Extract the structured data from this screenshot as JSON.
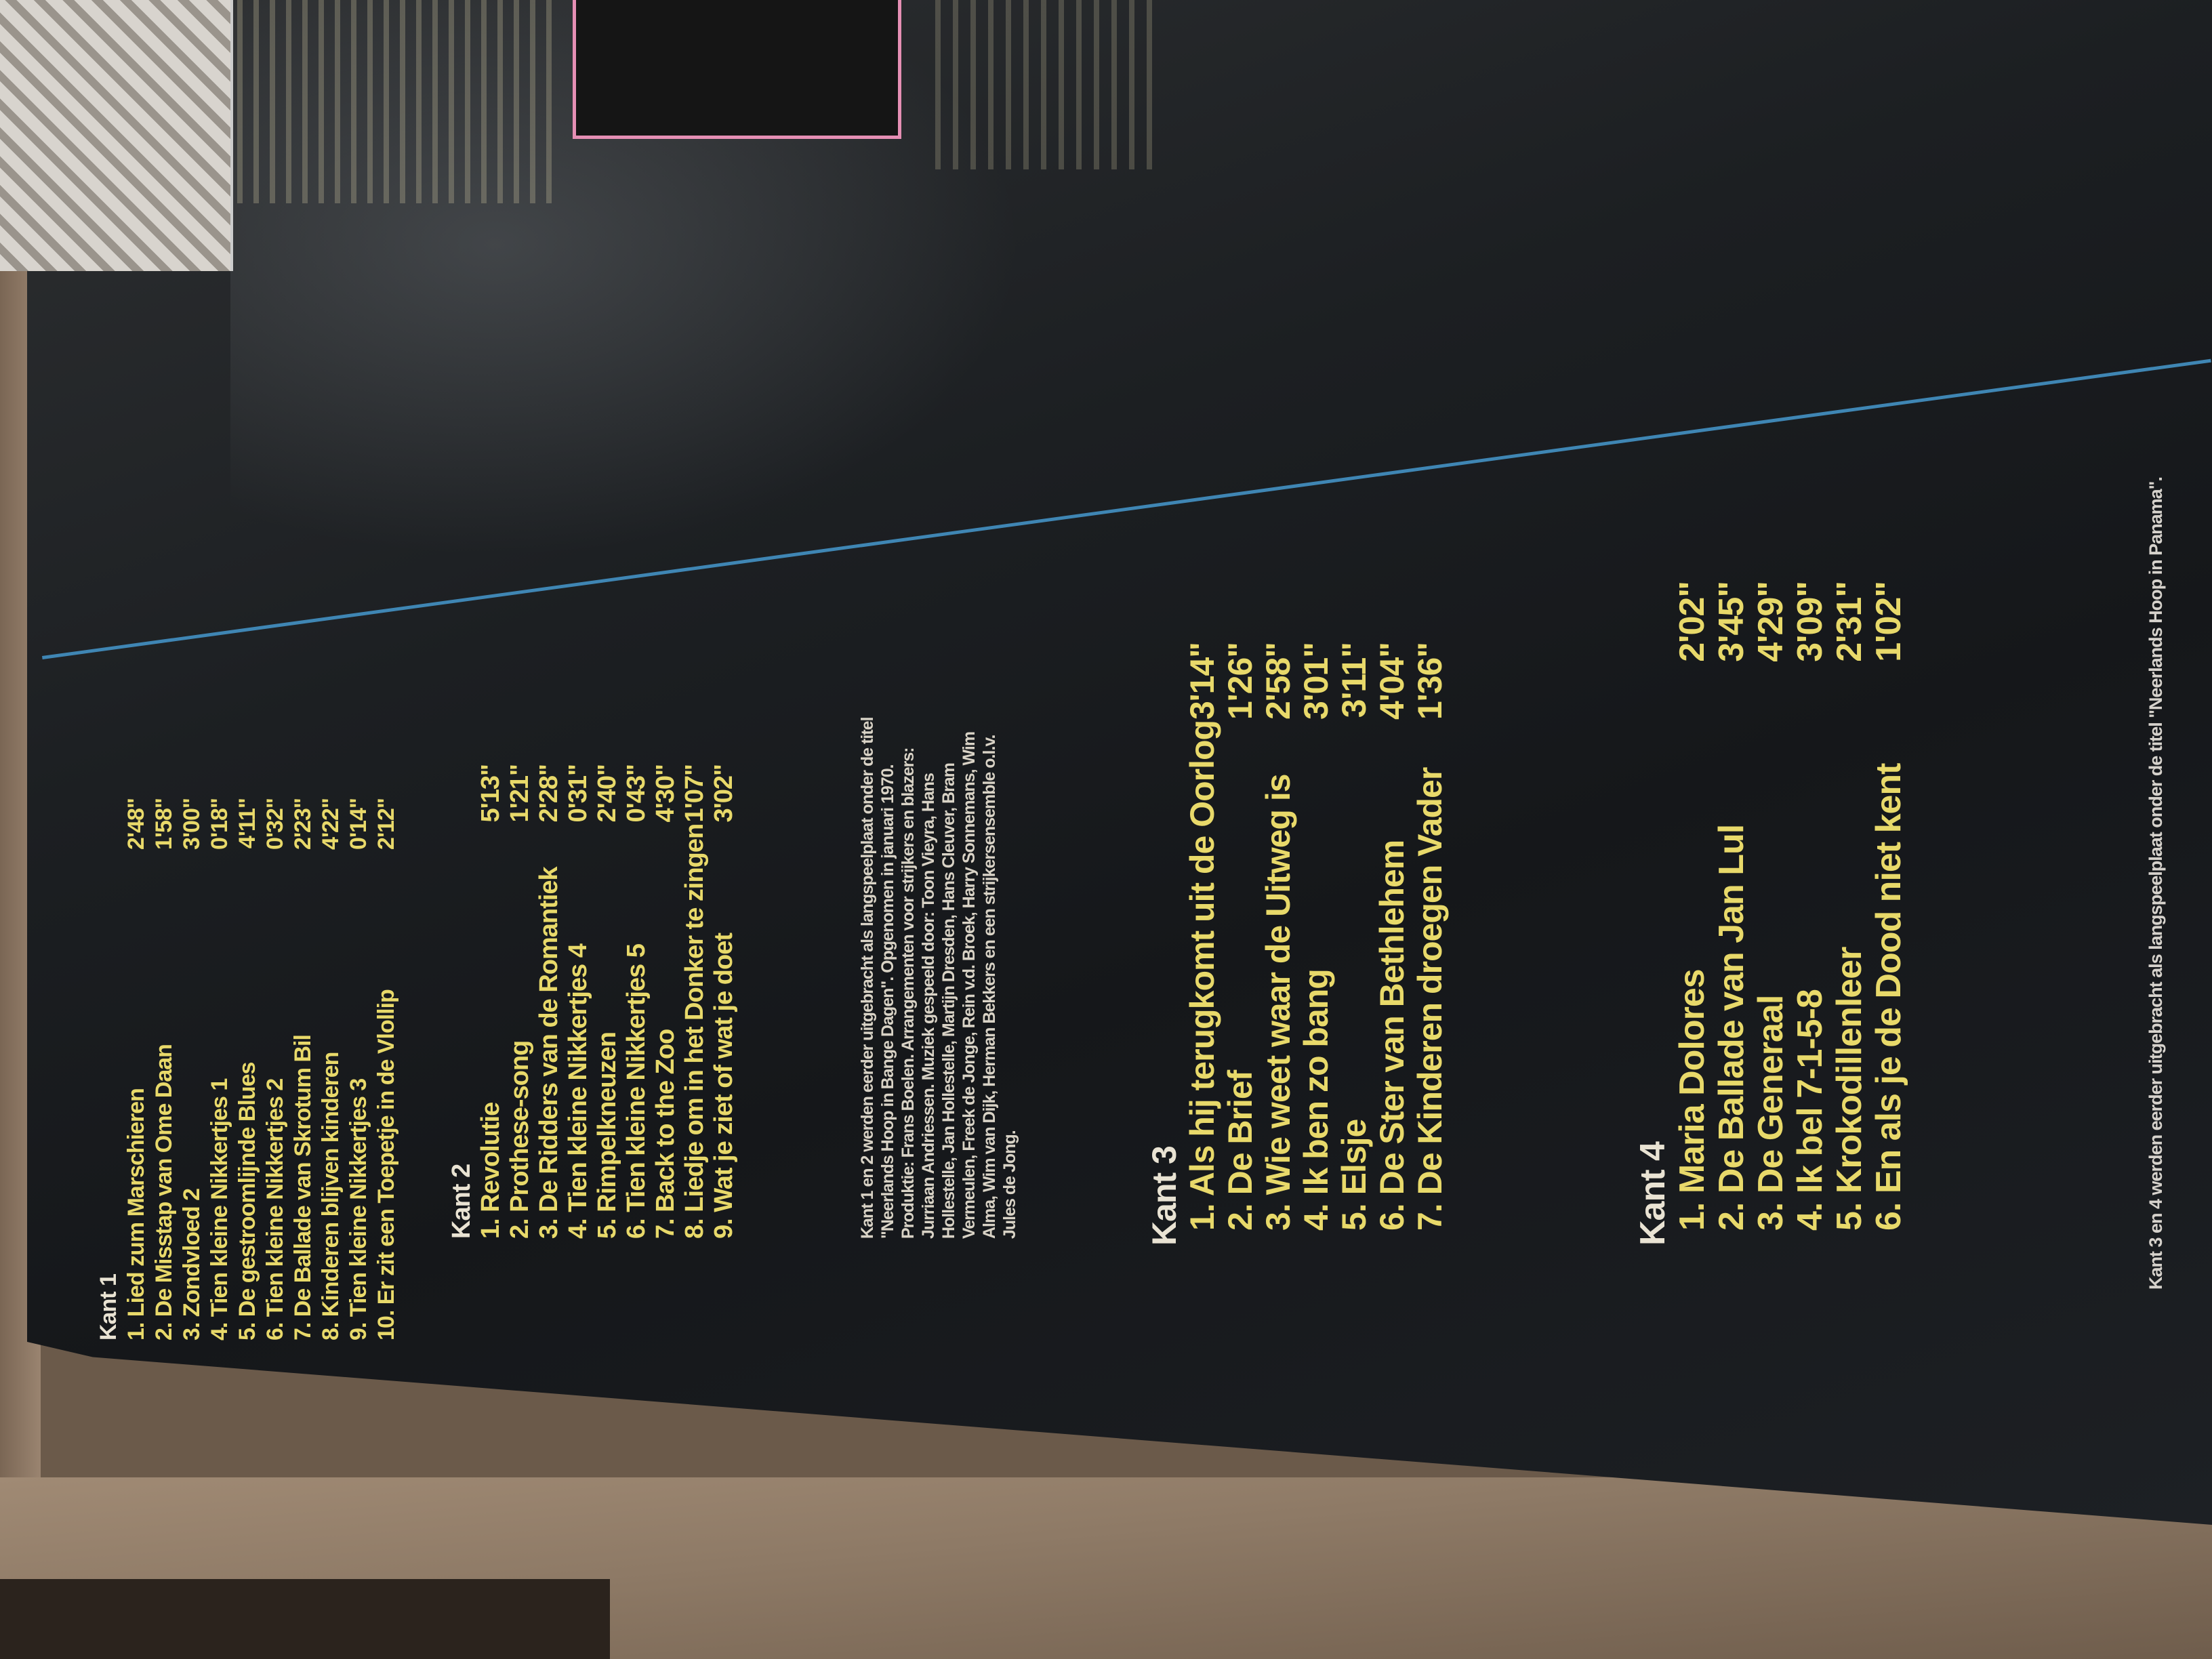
{
  "kant1": {
    "label": "Kant 1",
    "tracks": [
      {
        "title": "1. Lied zum Marschieren",
        "time": "2'48\""
      },
      {
        "title": "2. De Misstap van Ome Daan",
        "time": "1'58\""
      },
      {
        "title": "3. Zondvloed 2",
        "time": "3'00\""
      },
      {
        "title": "4. Tien kleine Nikkertjes 1",
        "time": "0'18\""
      },
      {
        "title": "5. De gestroomlijnde Blues",
        "time": "4'11\""
      },
      {
        "title": "6. Tien kleine Nikkertjes 2",
        "time": "0'32\""
      },
      {
        "title": "7. De Ballade van Skrotum Bil",
        "time": "2'23\""
      },
      {
        "title": "8. Kinderen blijven kinderen",
        "time": "4'22\""
      },
      {
        "title": "9. Tien kleine Nikkertjes 3",
        "time": "0'14\""
      },
      {
        "title": "10. Er zit een Toepetje in de Vlollip",
        "time": "2'12\""
      }
    ]
  },
  "kant2": {
    "label": "Kant 2",
    "tracks": [
      {
        "title": "1. Revolutie",
        "time": "5'13\""
      },
      {
        "title": "2. Prothese-song",
        "time": "1'21\""
      },
      {
        "title": "3. De Ridders van de Romantiek",
        "time": "2'28\""
      },
      {
        "title": "4. Tien kleine Nikkertjes 4",
        "time": "0'31\""
      },
      {
        "title": "5. Rimpelkneuzen",
        "time": "2'40\""
      },
      {
        "title": "6. Tien kleine Nikkertjes 5",
        "time": "0'43\""
      },
      {
        "title": "7. Back to the Zoo",
        "time": "4'30\""
      },
      {
        "title": "8. Liedje om in het Donker te zingen",
        "time": "1'07\""
      },
      {
        "title": "9. Wat je ziet of wat je doet",
        "time": "3'02\""
      }
    ]
  },
  "credits": "Kant 1 en 2 werden eerder uitgebracht als langspeelplaat onder de titel \"Neerlands Hoop in Bange Dagen\". Opgenomen in januari 1970. Produktie: Frans Boelen. Arrangementen voor strijkers en blazers: Jurriaan Andriessen. Muziek gespeeld door: Toon Vieyra, Hans Hollestelle, Jan Hollestelle, Martijn Dresden, Hans Cleuver, Bram Vermeulen, Freek de Jonge, Rein v.d. Broek, Harry Sonnemans, Wim Alma, Wim van Dijk, Herman Bekkers en een strijkersensemble o.l.v. Jules de Jong.",
  "kant3": {
    "label": "Kant 3",
    "tracks": [
      {
        "title": "1. Als hij terugkomt uit de Oorlog",
        "time": "3'14\""
      },
      {
        "title": "2. De Brief",
        "time": "1'26\""
      },
      {
        "title": "3. Wie weet waar de Uitweg is",
        "time": "2'58\""
      },
      {
        "title": "4. Ik ben zo bang",
        "time": "3'01\""
      },
      {
        "title": "5. Elsje",
        "time": "3'11\""
      },
      {
        "title": "6. De Ster van Bethlehem",
        "time": "4'04\""
      },
      {
        "title": "7. De Kinderen droegen Vader",
        "time": "1'36\""
      }
    ]
  },
  "kant4": {
    "label": "Kant 4",
    "tracks": [
      {
        "title": "1. Maria Dolores",
        "time": "2'02\""
      },
      {
        "title": "2. De Ballade van Jan Lul",
        "time": "3'45\""
      },
      {
        "title": "3. De Generaal",
        "time": "4'29\""
      },
      {
        "title": "4. Ik bel 7-1-5-8",
        "time": "3'09\""
      },
      {
        "title": "5. Krokodillenleer",
        "time": "2'31\""
      },
      {
        "title": "6. En als je de Dood niet kent",
        "time": "1'02\""
      }
    ]
  },
  "note": "Kant 3 en 4 werden eerder uitgebracht als langspeelplaat onder de titel \"Neerlands Hoop in Panama\".",
  "colors": {
    "track_text": "#e8d96a",
    "heading_text": "#e9e3d3",
    "sleeve": "#1c1f22",
    "accent_line": "#3f86b4",
    "frame": "#e58fb4"
  }
}
